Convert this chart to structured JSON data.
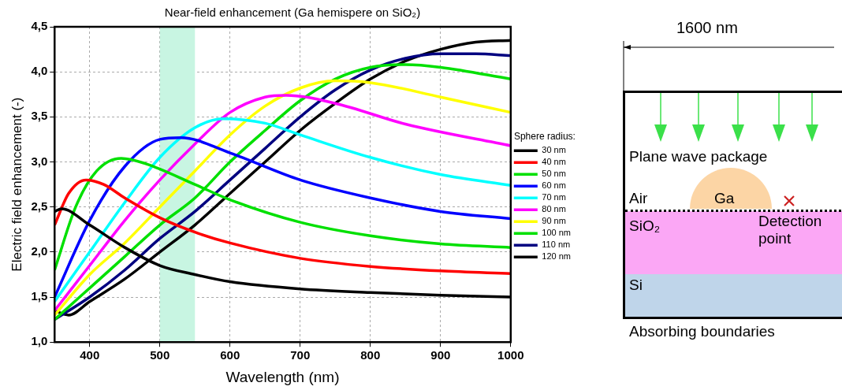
{
  "chart_data": {
    "type": "line",
    "title": "Near-field enhancement (Ga hemispere on SiO₂)",
    "xlabel": "Wavelength (nm)",
    "ylabel": "Electric field enhancement (-)",
    "legend_title": "Sphere radius:",
    "legend": "right",
    "grid": true,
    "marker": "none",
    "line_style": "solid",
    "xlim": [
      350,
      1000
    ],
    "xticks": [
      400,
      500,
      600,
      700,
      800,
      900,
      1000
    ],
    "ylim": [
      1,
      4.5
    ],
    "yticks": [
      {
        "value": 1,
        "label": "1,0"
      },
      {
        "value": 1.5,
        "label": "1,5"
      },
      {
        "value": 2,
        "label": "2,0"
      },
      {
        "value": 2.5,
        "label": "2,5"
      },
      {
        "value": 3,
        "label": "3,0"
      },
      {
        "value": 3.5,
        "label": "3,5"
      },
      {
        "value": 4,
        "label": "4,0"
      },
      {
        "value": 4.5,
        "label": "4,5"
      }
    ],
    "bands": [
      {
        "axis": "x",
        "from": 500,
        "to": 550,
        "color": "#c8f5e2"
      }
    ],
    "annotations": [
      "1600 nm",
      "Plane wave package",
      "Air",
      "Ga",
      "SiO₂",
      "Detection point",
      "Si",
      "Absorbing boundaries"
    ],
    "series": [
      {
        "name": "30 nm",
        "color": "#000000",
        "x": [
          350,
          360,
          400,
          450,
          500,
          550,
          600,
          700,
          800,
          900,
          1000
        ],
        "values": [
          2.45,
          2.48,
          2.3,
          2.05,
          1.85,
          1.75,
          1.67,
          1.59,
          1.55,
          1.52,
          1.5
        ]
      },
      {
        "name": "40 nm",
        "color": "#ff0000",
        "x": [
          350,
          370,
          395,
          420,
          450,
          500,
          550,
          600,
          700,
          800,
          900,
          1000
        ],
        "values": [
          2.3,
          2.65,
          2.8,
          2.75,
          2.6,
          2.38,
          2.22,
          2.1,
          1.93,
          1.84,
          1.79,
          1.76
        ]
      },
      {
        "name": "50 nm",
        "color": "#00e000",
        "x": [
          350,
          380,
          410,
          445,
          480,
          550,
          600,
          700,
          800,
          900,
          1000
        ],
        "values": [
          1.8,
          2.5,
          2.9,
          3.04,
          2.98,
          2.75,
          2.58,
          2.33,
          2.18,
          2.09,
          2.05
        ]
      },
      {
        "name": "60 nm",
        "color": "#0000ff",
        "x": [
          350,
          400,
          450,
          500,
          530,
          600,
          700,
          800,
          900,
          1000
        ],
        "values": [
          1.5,
          2.35,
          2.95,
          3.25,
          3.27,
          3.1,
          2.8,
          2.6,
          2.45,
          2.37
        ]
      },
      {
        "name": "70 nm",
        "color": "#00ffff",
        "x": [
          350,
          400,
          450,
          500,
          550,
          590,
          650,
          700,
          800,
          900,
          1000
        ],
        "values": [
          1.45,
          2.0,
          2.55,
          3.05,
          3.38,
          3.48,
          3.43,
          3.3,
          3.05,
          2.86,
          2.74
        ]
      },
      {
        "name": "80 nm",
        "color": "#ff00ff",
        "x": [
          350,
          400,
          450,
          500,
          550,
          600,
          650,
          680,
          750,
          850,
          1000
        ],
        "values": [
          1.35,
          1.85,
          2.35,
          2.8,
          3.2,
          3.55,
          3.72,
          3.74,
          3.65,
          3.42,
          3.18
        ]
      },
      {
        "name": "90 nm",
        "color": "#ffff00",
        "x": [
          350,
          400,
          450,
          500,
          550,
          600,
          650,
          700,
          750,
          800,
          900,
          1000
        ],
        "values": [
          1.3,
          1.75,
          2.1,
          2.5,
          2.9,
          3.3,
          3.62,
          3.82,
          3.9,
          3.88,
          3.72,
          3.55
        ]
      },
      {
        "name": "100 nm",
        "color": "#00e000",
        "x": [
          350,
          400,
          450,
          500,
          550,
          600,
          650,
          700,
          750,
          800,
          850,
          900,
          1000
        ],
        "values": [
          1.25,
          1.6,
          1.95,
          2.3,
          2.6,
          3.0,
          3.35,
          3.68,
          3.92,
          4.05,
          4.08,
          4.05,
          3.92
        ]
      },
      {
        "name": "110 nm",
        "color": "#000080",
        "x": [
          350,
          400,
          450,
          500,
          550,
          600,
          650,
          700,
          750,
          800,
          850,
          900,
          950,
          1000
        ],
        "values": [
          1.25,
          1.5,
          1.8,
          2.15,
          2.45,
          2.8,
          3.15,
          3.5,
          3.8,
          4.02,
          4.15,
          4.2,
          4.2,
          4.18
        ]
      },
      {
        "name": "120 nm",
        "color": "#000000",
        "x": [
          350,
          370,
          400,
          450,
          500,
          550,
          600,
          650,
          700,
          750,
          800,
          850,
          900,
          950,
          1000
        ],
        "values": [
          1.35,
          1.3,
          1.45,
          1.7,
          2.0,
          2.3,
          2.65,
          3.0,
          3.35,
          3.65,
          3.92,
          4.12,
          4.25,
          4.33,
          4.35
        ]
      }
    ]
  }
}
